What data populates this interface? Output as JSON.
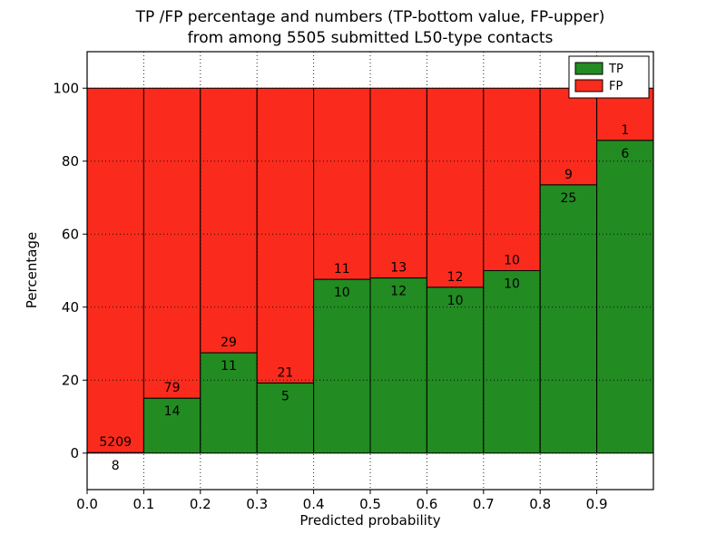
{
  "chart_data": {
    "type": "bar",
    "stacked": true,
    "title_line1": "TP /FP percentage and numbers (TP-bottom value, FP-upper)",
    "title_line2": "from among 5505 submitted L50-type contacts",
    "xlabel": "Predicted probability",
    "ylabel": "Percentage",
    "total_contacts": 5505,
    "x_ticks": [
      "0.0",
      "0.1",
      "0.2",
      "0.3",
      "0.4",
      "0.5",
      "0.6",
      "0.7",
      "0.8",
      "0.9"
    ],
    "y_ticks": [
      0,
      20,
      40,
      60,
      80,
      100
    ],
    "xlim": [
      0.0,
      1.0
    ],
    "ylim": [
      -10,
      110
    ],
    "bin_width": 0.1,
    "grid": true,
    "legend_position": "upper right",
    "bins": [
      {
        "x0": 0.0,
        "tp": 8,
        "fp": 5209,
        "tp_pct": 0.15
      },
      {
        "x0": 0.1,
        "tp": 14,
        "fp": 79,
        "tp_pct": 15.05
      },
      {
        "x0": 0.2,
        "tp": 11,
        "fp": 29,
        "tp_pct": 27.5
      },
      {
        "x0": 0.3,
        "tp": 5,
        "fp": 21,
        "tp_pct": 19.23
      },
      {
        "x0": 0.4,
        "tp": 10,
        "fp": 11,
        "tp_pct": 47.62
      },
      {
        "x0": 0.5,
        "tp": 12,
        "fp": 13,
        "tp_pct": 48.0
      },
      {
        "x0": 0.6,
        "tp": 10,
        "fp": 12,
        "tp_pct": 45.45
      },
      {
        "x0": 0.7,
        "tp": 10,
        "fp": 10,
        "tp_pct": 50.0
      },
      {
        "x0": 0.8,
        "tp": 25,
        "fp": 9,
        "tp_pct": 73.53
      },
      {
        "x0": 0.9,
        "tp": 6,
        "fp": 1,
        "tp_pct": 85.71
      }
    ],
    "legend": [
      {
        "label": "TP",
        "color": "#228b22"
      },
      {
        "label": "FP",
        "color": "#fa2b1d"
      }
    ],
    "colors": {
      "tp": "#228b22",
      "fp": "#fa2b1d",
      "grid": "#000000",
      "frame": "#000000"
    }
  }
}
